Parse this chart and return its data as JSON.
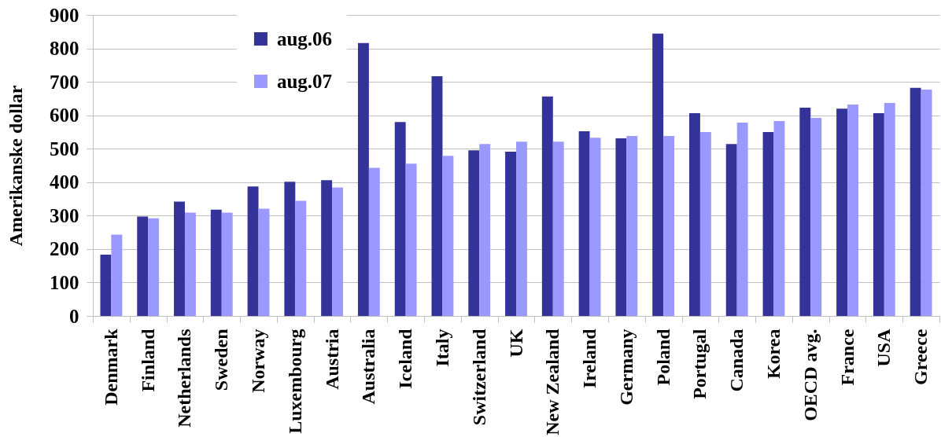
{
  "chart_data": {
    "type": "bar",
    "ylabel": "Amerikanske dollar",
    "categories": [
      "Denmark",
      "Finland",
      "Netherlands",
      "Sweden",
      "Norway",
      "Luxembourg",
      "Austria",
      "Australia",
      "Iceland",
      "Italy",
      "Switzerland",
      "UK",
      "New Zealand",
      "Ireland",
      "Germany",
      "Poland",
      "Portugal",
      "Canada",
      "Korea",
      "OECD avg.",
      "France",
      "USA",
      "Greece"
    ],
    "series": [
      {
        "name": "aug.06",
        "color": "#333399",
        "values": [
          183,
          297,
          342,
          318,
          387,
          401,
          406,
          816,
          580,
          717,
          495,
          491,
          656,
          552,
          531,
          844,
          606,
          514,
          550,
          623,
          620,
          606,
          682
        ]
      },
      {
        "name": "aug.07",
        "color": "#9999ff",
        "values": [
          243,
          292,
          309,
          309,
          321,
          344,
          384,
          443,
          455,
          479,
          514,
          521,
          521,
          533,
          538,
          538,
          550,
          578,
          583,
          592,
          632,
          637,
          677
        ]
      }
    ],
    "ylim": [
      0,
      900
    ],
    "yticks": [
      0,
      100,
      200,
      300,
      400,
      500,
      600,
      700,
      800,
      900
    ],
    "grid": "y",
    "legend": "top left"
  }
}
